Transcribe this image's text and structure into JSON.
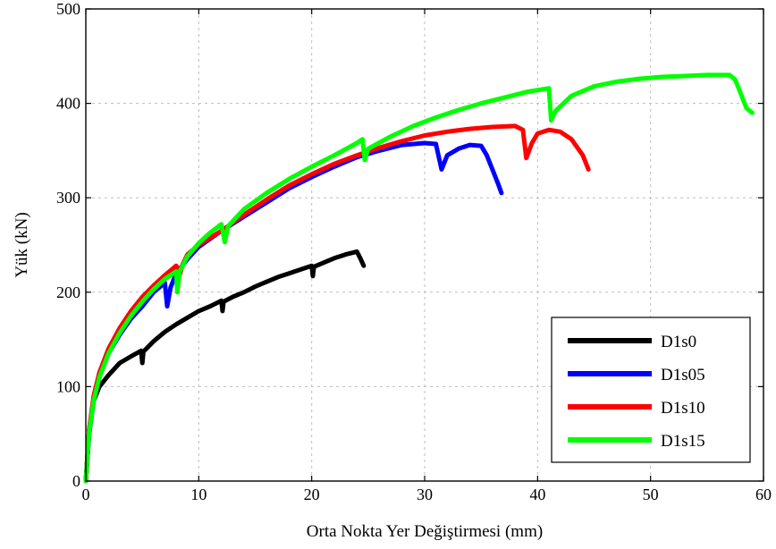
{
  "chart_data": {
    "type": "line",
    "title": "",
    "xlabel": "Orta Nokta Yer Değiştirmesi (mm)",
    "ylabel": "Yük (kN)",
    "xlim": [
      0,
      60
    ],
    "ylim": [
      0,
      500
    ],
    "xticks": [
      0,
      10,
      20,
      30,
      40,
      50,
      60
    ],
    "yticks": [
      0,
      100,
      200,
      300,
      400,
      500
    ],
    "grid": true,
    "legend_position": "bottom-right",
    "series": [
      {
        "name": "D1s0",
        "color": "#000000",
        "points": [
          [
            0,
            0
          ],
          [
            0.3,
            55
          ],
          [
            0.7,
            85
          ],
          [
            1.2,
            100
          ],
          [
            2,
            112
          ],
          [
            3,
            125
          ],
          [
            4,
            132
          ],
          [
            4.9,
            138
          ],
          [
            5,
            125
          ],
          [
            5.1,
            137
          ],
          [
            6,
            148
          ],
          [
            7,
            158
          ],
          [
            8,
            166
          ],
          [
            9,
            173
          ],
          [
            10,
            180
          ],
          [
            11,
            185
          ],
          [
            12,
            191
          ],
          [
            12.1,
            180
          ],
          [
            12.2,
            190
          ],
          [
            13,
            195
          ],
          [
            14,
            200
          ],
          [
            15,
            206
          ],
          [
            16,
            211
          ],
          [
            17,
            216
          ],
          [
            18,
            220
          ],
          [
            19,
            224
          ],
          [
            20,
            228
          ],
          [
            20.1,
            217
          ],
          [
            20.2,
            227
          ],
          [
            21,
            231
          ],
          [
            22,
            236
          ],
          [
            23,
            240
          ],
          [
            24,
            243
          ],
          [
            24.3,
            236
          ],
          [
            24.6,
            228
          ]
        ]
      },
      {
        "name": "D1s05",
        "color": "#0000ff",
        "points": [
          [
            0,
            0
          ],
          [
            0.3,
            50
          ],
          [
            0.7,
            85
          ],
          [
            1.2,
            110
          ],
          [
            2,
            135
          ],
          [
            3,
            155
          ],
          [
            4,
            172
          ],
          [
            5,
            185
          ],
          [
            6,
            200
          ],
          [
            7,
            210
          ],
          [
            7.2,
            185
          ],
          [
            7.5,
            205
          ],
          [
            8,
            220
          ],
          [
            9,
            235
          ],
          [
            10,
            248
          ],
          [
            12,
            265
          ],
          [
            14,
            280
          ],
          [
            16,
            295
          ],
          [
            18,
            310
          ],
          [
            20,
            322
          ],
          [
            22,
            333
          ],
          [
            24,
            343
          ],
          [
            26,
            350
          ],
          [
            28,
            356
          ],
          [
            30,
            358
          ],
          [
            31,
            357
          ],
          [
            31.5,
            330
          ],
          [
            32,
            345
          ],
          [
            33,
            352
          ],
          [
            34,
            356
          ],
          [
            35,
            355
          ],
          [
            35.5,
            345
          ],
          [
            36,
            330
          ],
          [
            36.5,
            315
          ],
          [
            36.8,
            305
          ]
        ]
      },
      {
        "name": "D1s10",
        "color": "#ff0000",
        "points": [
          [
            0,
            0
          ],
          [
            0.3,
            55
          ],
          [
            0.7,
            90
          ],
          [
            1.2,
            115
          ],
          [
            2,
            140
          ],
          [
            3,
            162
          ],
          [
            4,
            180
          ],
          [
            5,
            195
          ],
          [
            6,
            207
          ],
          [
            7,
            218
          ],
          [
            8,
            228
          ],
          [
            8.3,
            218
          ],
          [
            8.6,
            230
          ],
          [
            9,
            240
          ],
          [
            10,
            250
          ],
          [
            12,
            265
          ],
          [
            14,
            282
          ],
          [
            16,
            298
          ],
          [
            18,
            313
          ],
          [
            20,
            325
          ],
          [
            22,
            336
          ],
          [
            24,
            345
          ],
          [
            26,
            353
          ],
          [
            28,
            360
          ],
          [
            30,
            366
          ],
          [
            32,
            370
          ],
          [
            34,
            373
          ],
          [
            36,
            375
          ],
          [
            38,
            376
          ],
          [
            38.7,
            372
          ],
          [
            39,
            342
          ],
          [
            39.5,
            358
          ],
          [
            40,
            368
          ],
          [
            41,
            372
          ],
          [
            42,
            370
          ],
          [
            43,
            362
          ],
          [
            44,
            345
          ],
          [
            44.5,
            330
          ]
        ]
      },
      {
        "name": "D1s15",
        "color": "#00ff00",
        "points": [
          [
            0,
            0
          ],
          [
            0.3,
            52
          ],
          [
            0.7,
            85
          ],
          [
            1.2,
            110
          ],
          [
            2,
            135
          ],
          [
            3,
            157
          ],
          [
            4,
            175
          ],
          [
            5,
            190
          ],
          [
            6,
            203
          ],
          [
            7,
            214
          ],
          [
            8,
            222
          ],
          [
            8.1,
            200
          ],
          [
            8.3,
            222
          ],
          [
            9,
            238
          ],
          [
            10,
            252
          ],
          [
            11,
            263
          ],
          [
            12,
            272
          ],
          [
            12.3,
            253
          ],
          [
            12.6,
            270
          ],
          [
            14,
            288
          ],
          [
            16,
            305
          ],
          [
            18,
            320
          ],
          [
            20,
            333
          ],
          [
            22,
            345
          ],
          [
            24,
            358
          ],
          [
            24.5,
            362
          ],
          [
            24.7,
            340
          ],
          [
            25,
            352
          ],
          [
            27,
            365
          ],
          [
            29,
            376
          ],
          [
            31,
            385
          ],
          [
            33,
            393
          ],
          [
            35,
            400
          ],
          [
            37,
            406
          ],
          [
            39,
            412
          ],
          [
            41,
            416
          ],
          [
            41.2,
            382
          ],
          [
            41.6,
            392
          ],
          [
            43,
            408
          ],
          [
            45,
            418
          ],
          [
            47,
            423
          ],
          [
            49,
            426
          ],
          [
            51,
            428
          ],
          [
            53,
            429
          ],
          [
            55,
            430
          ],
          [
            57,
            430
          ],
          [
            57.5,
            425
          ],
          [
            58,
            410
          ],
          [
            58.5,
            395
          ],
          [
            59,
            390
          ]
        ]
      }
    ]
  }
}
